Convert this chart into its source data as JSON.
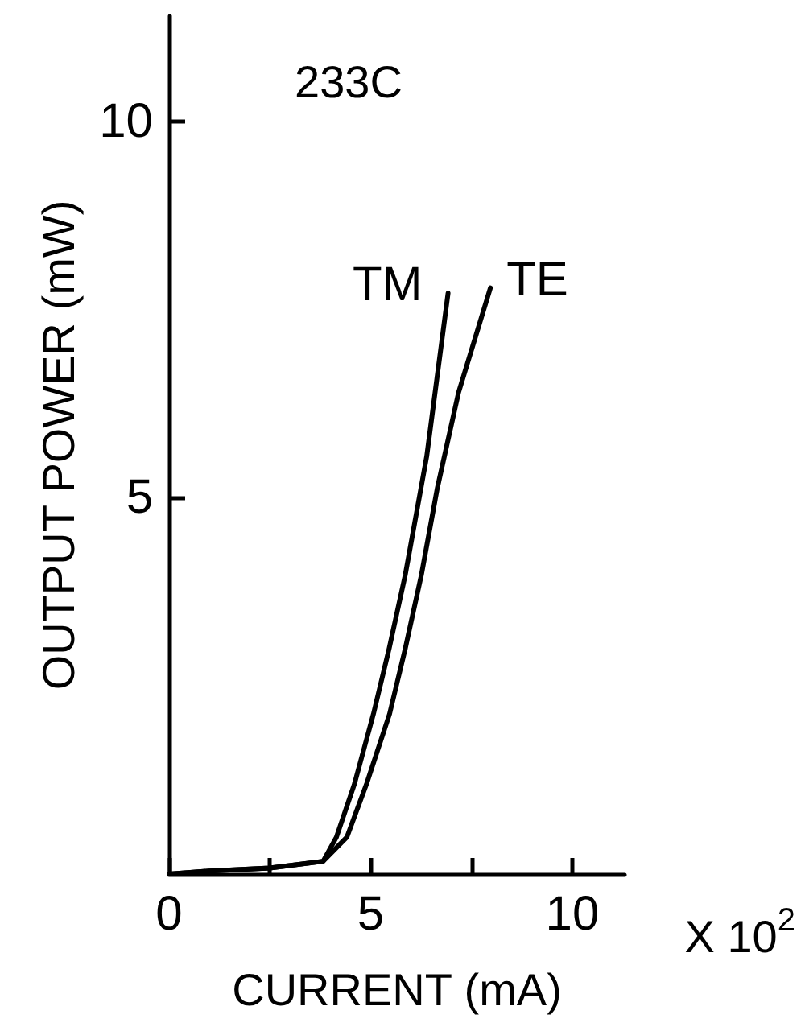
{
  "chart_data": {
    "type": "line",
    "title": "233C",
    "xlabel": "CURRENT (mA)",
    "ylabel": "OUTPUT POWER (mW)",
    "annotations": [
      "X 10$^{2}$"
    ],
    "xlim": [
      0,
      11.3
    ],
    "ylim": [
      0,
      11.4
    ],
    "xticks": [
      0,
      {
        "value": 2.5,
        "label": null
      },
      5,
      {
        "value": 7.5,
        "label": null
      },
      10
    ],
    "yticks": [
      5,
      10
    ],
    "grid": false,
    "legend": false,
    "marker": "none",
    "line_style": "solid",
    "series": [
      {
        "name": "TM",
        "color": "#000000",
        "x": [
          0,
          1,
          2.5,
          3.82,
          4.15,
          4.6,
          5.07,
          5.46,
          5.86,
          6.39,
          6.92
        ],
        "values": [
          0,
          0.04,
          0.08,
          0.17,
          0.49,
          1.2,
          2.13,
          3.0,
          3.98,
          5.55,
          7.72
        ]
      },
      {
        "name": "TE",
        "color": "#000000",
        "x": [
          0,
          1,
          2.5,
          3.82,
          4.41,
          4.9,
          5.47,
          5.86,
          6.26,
          6.65,
          7.18,
          7.97
        ],
        "values": [
          0,
          0.04,
          0.08,
          0.17,
          0.49,
          1.2,
          2.13,
          3.0,
          3.98,
          5.12,
          6.4,
          7.79
        ]
      }
    ]
  }
}
